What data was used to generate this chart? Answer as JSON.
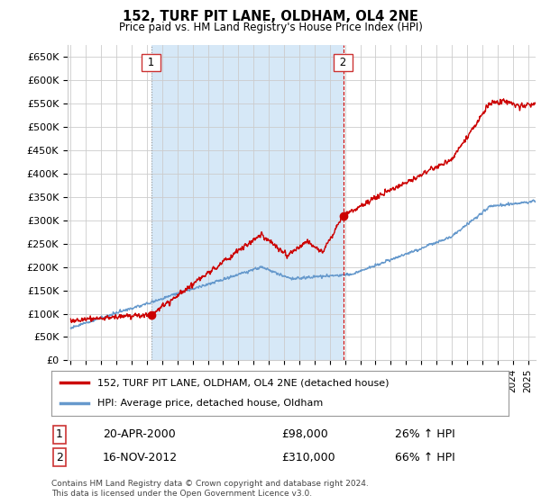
{
  "title": "152, TURF PIT LANE, OLDHAM, OL4 2NE",
  "subtitle": "Price paid vs. HM Land Registry's House Price Index (HPI)",
  "ylabel_ticks": [
    "£0",
    "£50K",
    "£100K",
    "£150K",
    "£200K",
    "£250K",
    "£300K",
    "£350K",
    "£400K",
    "£450K",
    "£500K",
    "£550K",
    "£600K",
    "£650K"
  ],
  "ylim": [
    0,
    675000
  ],
  "xlim_start": 1994.8,
  "xlim_end": 2025.5,
  "red_line_color": "#cc0000",
  "blue_line_color": "#6699cc",
  "shade_color": "#d6e8f7",
  "grid_color": "#cccccc",
  "bg_color": "#ffffff",
  "sale1_x": 2000.29,
  "sale1_y": 98000,
  "sale2_x": 2012.88,
  "sale2_y": 310000,
  "legend_line1": "152, TURF PIT LANE, OLDHAM, OL4 2NE (detached house)",
  "legend_line2": "HPI: Average price, detached house, Oldham",
  "annotation1_label": "1",
  "annotation1_date": "20-APR-2000",
  "annotation1_price": "£98,000",
  "annotation1_hpi": "26% ↑ HPI",
  "annotation2_label": "2",
  "annotation2_date": "16-NOV-2012",
  "annotation2_price": "£310,000",
  "annotation2_hpi": "66% ↑ HPI",
  "footer": "Contains HM Land Registry data © Crown copyright and database right 2024.\nThis data is licensed under the Open Government Licence v3.0."
}
